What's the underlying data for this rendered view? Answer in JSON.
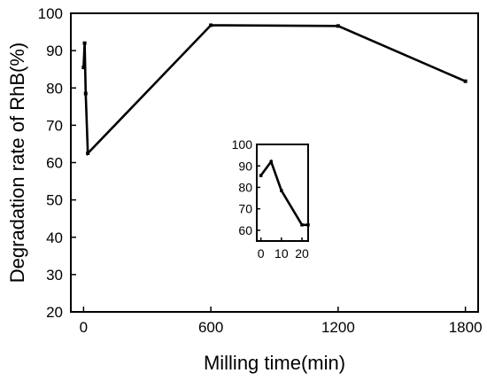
{
  "chart_data": [
    {
      "type": "line",
      "title": "",
      "xlabel": "Milling time(min)",
      "ylabel": "Degradation rate of RhB(%)",
      "xlim": [
        -60,
        1860
      ],
      "ylim": [
        20,
        100
      ],
      "xticks": [
        "0",
        "600",
        "1200",
        "1800"
      ],
      "yticks": [
        "20",
        "30",
        "40",
        "50",
        "60",
        "70",
        "80",
        "90",
        "100"
      ],
      "legend": "none",
      "grid": false,
      "series": [
        {
          "x": [
            0,
            5,
            10,
            20,
            600,
            1200,
            1800
          ],
          "values": [
            85.5,
            92,
            78.5,
            62.5,
            96.8,
            96.6,
            81.8
          ]
        }
      ]
    },
    {
      "type": "line",
      "title": "",
      "xlabel": "",
      "ylabel": "",
      "xlim": [
        -2,
        23
      ],
      "ylim": [
        55,
        100
      ],
      "xticks": [
        "0",
        "10",
        "20"
      ],
      "yticks": [
        "60",
        "70",
        "80",
        "90",
        "100"
      ],
      "legend": "none",
      "grid": false,
      "series": [
        {
          "x": [
            0,
            5,
            10,
            20,
            23
          ],
          "values": [
            85.5,
            92,
            78.5,
            62.5,
            62.5
          ]
        }
      ]
    }
  ]
}
